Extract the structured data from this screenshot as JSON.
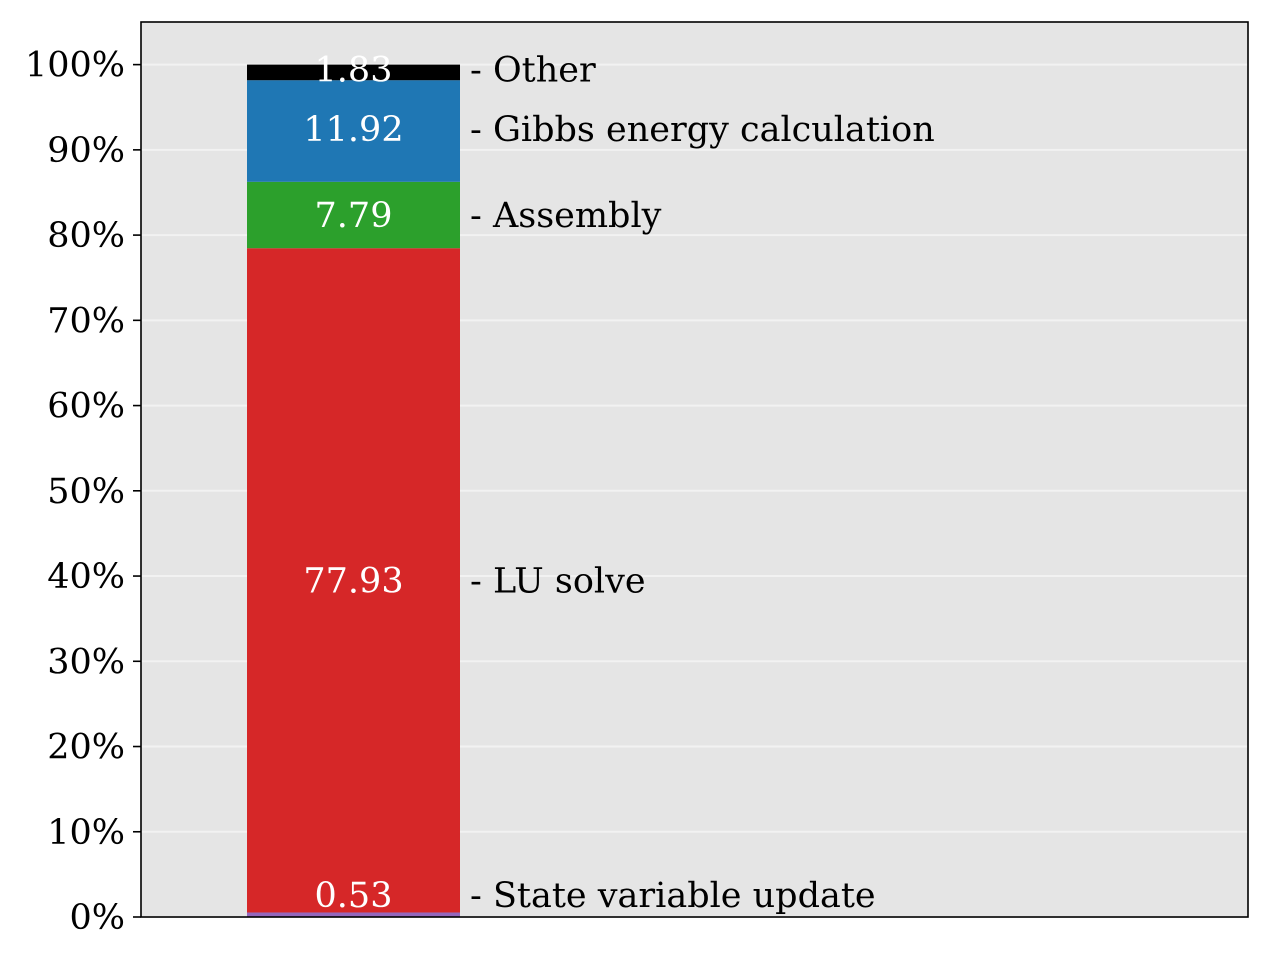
{
  "chart_data": {
    "type": "bar",
    "stacked": true,
    "ylim": [
      0,
      105
    ],
    "yticks": [
      0,
      10,
      20,
      30,
      40,
      50,
      60,
      70,
      80,
      90,
      100
    ],
    "ytick_labels": [
      "0%",
      "10%",
      "20%",
      "30%",
      "40%",
      "50%",
      "60%",
      "70%",
      "80%",
      "90%",
      "100%"
    ],
    "grid": "y",
    "title": "",
    "xlabel": "",
    "ylabel": "",
    "segments": [
      {
        "name": "State variable update",
        "value": 0.53,
        "value_label": "0.53",
        "side_label": "- State variable update",
        "color": "#9467bd"
      },
      {
        "name": "LU solve",
        "value": 77.93,
        "value_label": "77.93",
        "side_label": "- LU solve",
        "color": "#d62728"
      },
      {
        "name": "Assembly",
        "value": 7.79,
        "value_label": "7.79",
        "side_label": "- Assembly",
        "color": "#2ca02c"
      },
      {
        "name": "Gibbs energy calculation",
        "value": 11.92,
        "value_label": "11.92",
        "side_label": "- Gibbs energy calculation",
        "color": "#1f77b4"
      },
      {
        "name": "Other",
        "value": 1.83,
        "value_label": "1.83",
        "side_label": "- Other",
        "color": "#000000"
      }
    ]
  },
  "colors": {
    "plot_background": "#e5e5e5",
    "gridline": "#f2f2f2",
    "axis": "#000000"
  }
}
